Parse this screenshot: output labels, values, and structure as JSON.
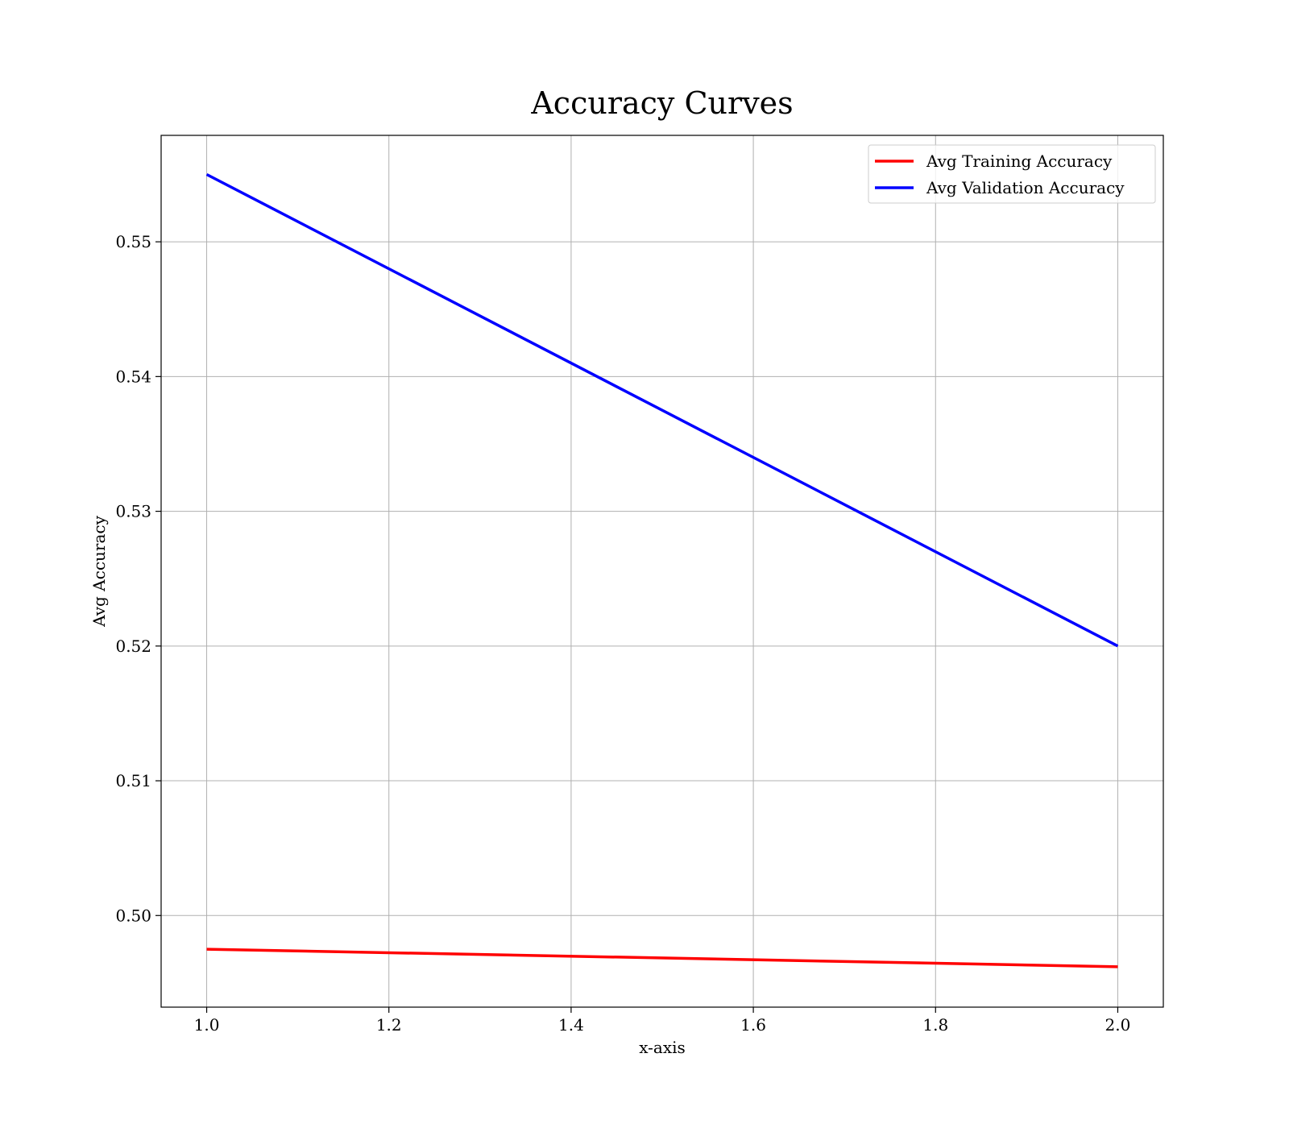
{
  "chart_data": {
    "type": "line",
    "title": "Accuracy Curves",
    "xlabel": "x-axis",
    "ylabel": "Avg Accuracy",
    "xlim": [
      0.95,
      2.05
    ],
    "ylim": [
      0.4932,
      0.5579
    ],
    "xticks": [
      1.0,
      1.2,
      1.4,
      1.6,
      1.8,
      2.0
    ],
    "xtick_labels": [
      "1.0",
      "1.2",
      "1.4",
      "1.6",
      "1.8",
      "2.0"
    ],
    "yticks": [
      0.5,
      0.51,
      0.52,
      0.53,
      0.54,
      0.55
    ],
    "ytick_labels": [
      "0.50",
      "0.51",
      "0.52",
      "0.53",
      "0.54",
      "0.55"
    ],
    "grid": true,
    "legend_position": "top-right",
    "x": [
      1.0,
      2.0
    ],
    "series": [
      {
        "name": "Avg Training Accuracy",
        "color": "#ff0000",
        "values": [
          0.4975,
          0.4962
        ]
      },
      {
        "name": "Avg Validation Accuracy",
        "color": "#0000ff",
        "values": [
          0.555,
          0.52
        ]
      }
    ]
  }
}
